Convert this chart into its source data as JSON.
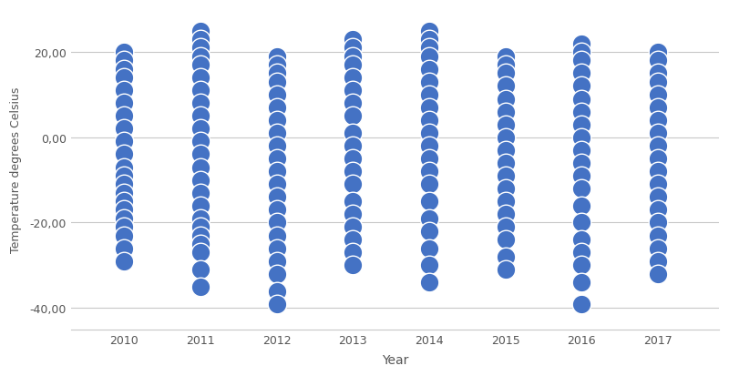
{
  "years": [
    2010,
    2011,
    2012,
    2013,
    2014,
    2015,
    2016,
    2017
  ],
  "temperatures": {
    "2010": [
      20,
      18,
      16,
      14,
      11,
      8,
      5,
      2,
      -1,
      -4,
      -7,
      -9,
      -11,
      -13,
      -15,
      -17,
      -19,
      -21,
      -23,
      -26,
      -29
    ],
    "2011": [
      25,
      23,
      21,
      19,
      17,
      14,
      11,
      8,
      5,
      2,
      -1,
      -4,
      -7,
      -10,
      -13,
      -16,
      -19,
      -21,
      -23,
      -25,
      -27,
      -31,
      -35
    ],
    "2012": [
      19,
      17,
      15,
      13,
      10,
      7,
      4,
      1,
      -2,
      -5,
      -8,
      -11,
      -14,
      -17,
      -20,
      -23,
      -26,
      -29,
      -32,
      -36,
      -39
    ],
    "2013": [
      23,
      21,
      19,
      17,
      14,
      11,
      8,
      5,
      1,
      -2,
      -5,
      -8,
      -11,
      -15,
      -18,
      -21,
      -24,
      -27,
      -30
    ],
    "2014": [
      25,
      23,
      21,
      19,
      16,
      13,
      10,
      7,
      4,
      1,
      -2,
      -5,
      -8,
      -11,
      -15,
      -19,
      -22,
      -26,
      -30,
      -34
    ],
    "2015": [
      19,
      17,
      15,
      12,
      9,
      6,
      3,
      0,
      -3,
      -6,
      -9,
      -12,
      -15,
      -18,
      -21,
      -24,
      -28,
      -31
    ],
    "2016": [
      22,
      20,
      18,
      15,
      12,
      9,
      6,
      3,
      0,
      -3,
      -6,
      -9,
      -12,
      -16,
      -20,
      -24,
      -27,
      -30,
      -34,
      -39
    ],
    "2017": [
      20,
      18,
      15,
      13,
      10,
      7,
      4,
      1,
      -2,
      -5,
      -8,
      -11,
      -14,
      -17,
      -20,
      -23,
      -26,
      -29,
      -32
    ]
  },
  "dot_color": "#4472C4",
  "dot_edge_color": "white",
  "dot_size": 220,
  "dot_linewidth": 1.0,
  "background_color": "#ffffff",
  "grid_color": "#c8c8c8",
  "xlabel": "Year",
  "ylabel": "Temperature degrees Celsius",
  "ylim": [
    -45,
    30
  ],
  "yticks": [
    20.0,
    0.0,
    -20.0,
    -40.0
  ],
  "ytick_labels": [
    "20,00",
    "0,00",
    "-20,00",
    "-40,00"
  ],
  "title": "",
  "figsize": [
    8.0,
    4.14
  ],
  "dpi": 100
}
